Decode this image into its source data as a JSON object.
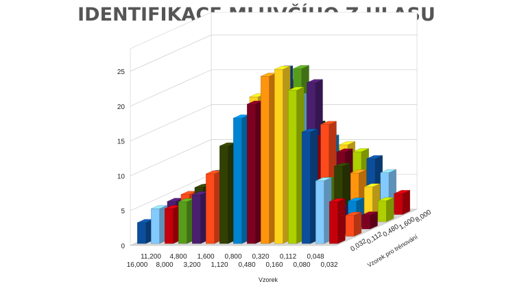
{
  "title": "IDENTIFIKACE MLUVČÍHO Z HLASU",
  "chart_data": {
    "type": "bar3d",
    "xlabel": "Vzorek",
    "zlabel": "Vzorek pro trénování",
    "ylim": [
      0,
      25
    ],
    "yticks": [
      "0",
      "5",
      "10",
      "15",
      "20",
      "25"
    ],
    "x_categories": [
      "16,000",
      "11,200",
      "8,000",
      "4,800",
      "3,200",
      "1,600",
      "1,120",
      "0,800",
      "0,480",
      "0,320",
      "0,160",
      "0,112",
      "0,080",
      "0,048",
      "0,032"
    ],
    "z_categories": [
      "0,032",
      "0,112",
      "0,480",
      "1,600",
      "8,000"
    ],
    "colors": [
      "#0b4f9c",
      "#ff4a1a",
      "#ffd21f",
      "#579d1c",
      "#7e0021",
      "#83caff",
      "#314004",
      "#aecf00",
      "#4b1f6f",
      "#ff950e",
      "#c5000b",
      "#0084d1"
    ],
    "series": [
      {
        "name": "0,032",
        "values": [
          3,
          5,
          5,
          6,
          7,
          10,
          14,
          18,
          20,
          24,
          25,
          22,
          16,
          9,
          6
        ]
      },
      {
        "name": "0,112",
        "values": [
          3,
          5,
          6,
          7,
          9,
          11,
          16,
          20,
          22,
          24,
          20,
          14,
          8,
          4,
          3
        ]
      },
      {
        "name": "0,480",
        "values": [
          2,
          4,
          6,
          8,
          10,
          12,
          15,
          17,
          21,
          23,
          21,
          15,
          9,
          4,
          2
        ]
      },
      {
        "name": "1,600",
        "values": [
          2,
          3,
          4,
          5,
          6,
          7,
          9,
          10,
          12,
          14,
          12,
          10,
          7,
          5,
          3
        ]
      },
      {
        "name": "8,000",
        "values": [
          1,
          2,
          3,
          3,
          4,
          5,
          6,
          7,
          8,
          9,
          10,
          9,
          8,
          6,
          3
        ]
      }
    ]
  }
}
